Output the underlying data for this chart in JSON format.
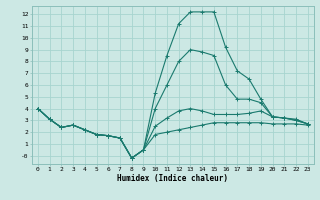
{
  "xlabel": "Humidex (Indice chaleur)",
  "bg_color": "#cce8e4",
  "grid_color": "#a8d4cf",
  "line_color": "#1a7a6e",
  "xlim": [
    -0.5,
    23.5
  ],
  "ylim": [
    -0.7,
    12.7
  ],
  "xticks": [
    0,
    1,
    2,
    3,
    4,
    5,
    6,
    7,
    8,
    9,
    10,
    11,
    12,
    13,
    14,
    15,
    16,
    17,
    18,
    19,
    20,
    21,
    22,
    23
  ],
  "yticks": [
    0,
    1,
    2,
    3,
    4,
    5,
    6,
    7,
    8,
    9,
    10,
    11,
    12
  ],
  "ytick_labels": [
    "-0",
    "1",
    "2",
    "3",
    "4",
    "5",
    "6",
    "7",
    "8",
    "9",
    "10",
    "11",
    "12"
  ],
  "curve_main_x": [
    0,
    1,
    2,
    3,
    4,
    5,
    6,
    7,
    8,
    9,
    10,
    11,
    12,
    13,
    14,
    15,
    16,
    17,
    18,
    19,
    20,
    21,
    22,
    23
  ],
  "curve_main_y": [
    4.0,
    3.1,
    2.4,
    2.6,
    2.2,
    1.8,
    1.7,
    1.5,
    -0.2,
    0.5,
    5.3,
    8.5,
    11.2,
    12.2,
    12.2,
    12.2,
    9.2,
    7.2,
    6.5,
    4.8,
    3.3,
    3.2,
    3.1,
    2.7
  ],
  "curve_low_x": [
    0,
    1,
    2,
    3,
    4,
    5,
    6,
    7,
    8,
    9,
    10,
    11,
    12,
    13,
    14,
    15,
    16,
    17,
    18,
    19,
    20,
    21,
    22,
    23
  ],
  "curve_low_y": [
    4.0,
    3.1,
    2.4,
    2.6,
    2.2,
    1.8,
    1.7,
    1.5,
    -0.2,
    0.5,
    1.8,
    2.0,
    2.2,
    2.4,
    2.6,
    2.8,
    2.8,
    2.8,
    2.8,
    2.8,
    2.7,
    2.7,
    2.7,
    2.6
  ],
  "curve_mid_x": [
    0,
    1,
    2,
    3,
    4,
    5,
    6,
    7,
    8,
    9,
    10,
    11,
    12,
    13,
    14,
    15,
    16,
    17,
    18,
    19,
    20,
    21,
    22,
    23
  ],
  "curve_mid_y": [
    4.0,
    3.1,
    2.4,
    2.6,
    2.2,
    1.8,
    1.7,
    1.5,
    -0.2,
    0.5,
    2.5,
    3.2,
    3.8,
    4.0,
    3.8,
    3.5,
    3.5,
    3.5,
    3.6,
    3.8,
    3.3,
    3.2,
    3.0,
    2.7
  ],
  "curve_upper_x": [
    0,
    1,
    2,
    3,
    4,
    5,
    6,
    7,
    8,
    9,
    10,
    11,
    12,
    13,
    14,
    15,
    16,
    17,
    18,
    19,
    20,
    21,
    22,
    23
  ],
  "curve_upper_y": [
    4.0,
    3.1,
    2.4,
    2.6,
    2.2,
    1.8,
    1.7,
    1.5,
    -0.2,
    0.5,
    4.0,
    6.0,
    8.0,
    9.0,
    8.8,
    8.5,
    6.0,
    4.8,
    4.8,
    4.5,
    3.3,
    3.2,
    3.0,
    2.7
  ]
}
